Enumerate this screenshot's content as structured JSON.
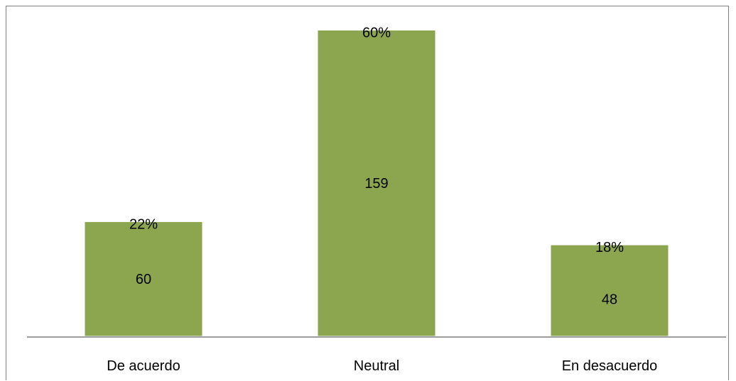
{
  "chart_data": {
    "type": "bar",
    "categories": [
      "De acuerdo",
      "Neutral",
      "En desacuerdo"
    ],
    "values": [
      60,
      159,
      48
    ],
    "percent_labels": [
      "22%",
      "60%",
      "18%"
    ],
    "ylim": [
      0,
      172
    ],
    "grid": false,
    "legend": "none",
    "colors": {
      "bar": "#8ba64f",
      "bar_edge": "#ffffff",
      "axis": "#7f7f7f"
    }
  }
}
